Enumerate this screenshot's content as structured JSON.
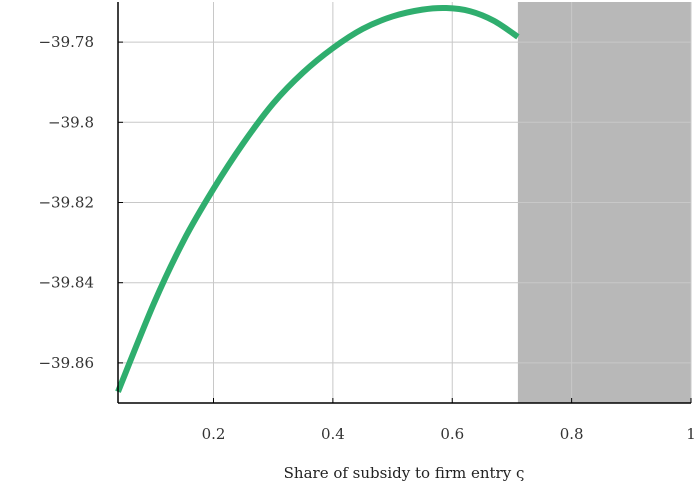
{
  "chart_data": {
    "type": "line",
    "title": "",
    "xlabel": "Share of subsidy to firm entry ς",
    "ylabel": "",
    "xlim": [
      0.04,
      1.0
    ],
    "ylim": [
      -39.87,
      -39.77
    ],
    "xticks": [
      0.2,
      0.4,
      0.6,
      0.8,
      1
    ],
    "xtick_labels": [
      "0.2",
      "0.4",
      "0.6",
      "0.8",
      "1"
    ],
    "yticks": [
      -39.78,
      -39.8,
      -39.82,
      -39.84,
      -39.86
    ],
    "ytick_labels": [
      "−39.78",
      "−39.8",
      "−39.82",
      "−39.84",
      "−39.86"
    ],
    "grid": true,
    "shaded_region": {
      "x_start": 0.71,
      "x_end": 1.0,
      "color": "#b8b8b8"
    },
    "series": [
      {
        "color": "#2fae6e",
        "x": [
          0.04,
          0.1,
          0.15,
          0.2,
          0.25,
          0.3,
          0.35,
          0.4,
          0.45,
          0.5,
          0.55,
          0.59,
          0.63,
          0.67,
          0.71
        ],
        "y": [
          -39.8672,
          -39.8452,
          -39.8295,
          -39.8166,
          -39.8052,
          -39.7953,
          -39.7876,
          -39.7815,
          -39.7767,
          -39.7736,
          -39.7719,
          -39.7715,
          -39.7723,
          -39.7747,
          -39.7787
        ]
      }
    ]
  }
}
